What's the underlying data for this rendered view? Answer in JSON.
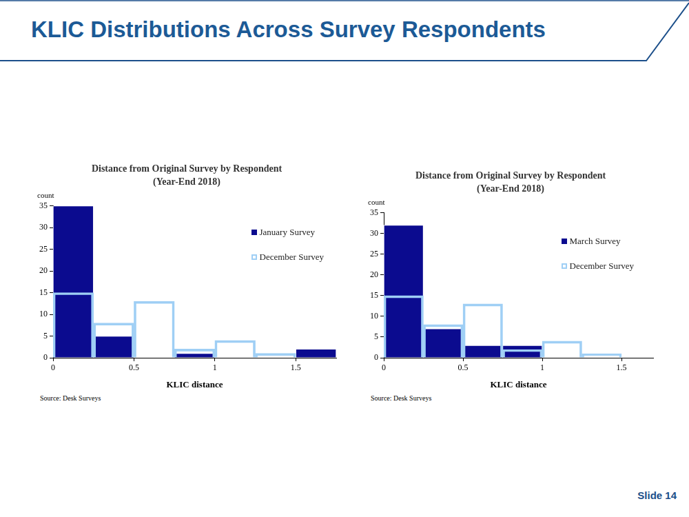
{
  "slide": {
    "title": "KLIC Distributions Across Survey Respondents",
    "label": "Slide 14"
  },
  "chart_data": [
    {
      "type": "histogram",
      "title": "Distance from Original Survey by Respondent",
      "subtitle": "(Year-End 2018)",
      "x_label": "KLIC distance",
      "y_label": "count",
      "source": "Source: Desk Surveys",
      "bins": [
        0,
        0.25,
        0.5,
        0.75,
        1,
        1.25,
        1.5,
        1.75
      ],
      "series": [
        {
          "name": "January Survey",
          "color": "#0b0b8f",
          "values": [
            35,
            5,
            0,
            1,
            0,
            0,
            2
          ]
        },
        {
          "name": "December Survey",
          "color": "#9fcff5",
          "values": [
            15,
            8,
            13,
            2,
            4,
            1,
            0
          ]
        }
      ],
      "xlim": [
        0,
        1.75
      ],
      "xticks": [
        0,
        0.5,
        1,
        1.5
      ],
      "ylim": [
        0,
        35
      ],
      "yticks": [
        0,
        5,
        10,
        15,
        20,
        25,
        30,
        35
      ],
      "grid": false,
      "legend": "upper right"
    },
    {
      "type": "histogram",
      "title": "Distance from Original Survey by Respondent",
      "subtitle": "(Year-End 2018)",
      "x_label": "KLIC distance",
      "y_label": "count",
      "source": "Source: Desk Surveys",
      "bins": [
        0,
        0.25,
        0.5,
        0.75,
        1,
        1.25,
        1.5
      ],
      "series": [
        {
          "name": "March Survey",
          "color": "#0b0b8f",
          "values": [
            32,
            7,
            3,
            3,
            0,
            0
          ]
        },
        {
          "name": "December Survey",
          "color": "#9fcff5",
          "values": [
            15,
            8,
            13,
            2,
            4,
            1
          ]
        }
      ],
      "xlim": [
        0,
        1.7
      ],
      "xticks": [
        0,
        0.5,
        1,
        1.5
      ],
      "ylim": [
        0,
        35
      ],
      "yticks": [
        0,
        5,
        10,
        15,
        20,
        25,
        30,
        35
      ],
      "grid": false,
      "legend": "upper right"
    }
  ]
}
